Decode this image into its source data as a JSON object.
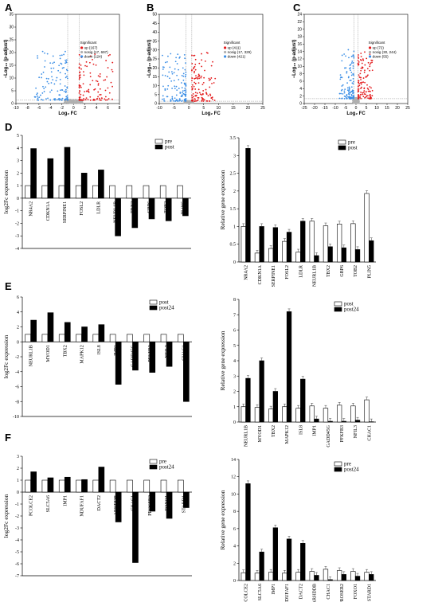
{
  "panels": {
    "A": "A",
    "B": "B",
    "C": "C",
    "D": "D",
    "E": "E",
    "F": "F"
  },
  "volcano": {
    "xlabel": "Log₂ FC",
    "ylabel": "−Log₁₀ (p-adjust)",
    "legend_title": "Significant",
    "colors": {
      "up": "#e31a1c",
      "nosig": "#b0b0b0",
      "down": "#3a8ee6"
    },
    "plots": [
      {
        "id": "A",
        "xlim": [
          -10,
          8
        ],
        "ylim": [
          0,
          35
        ],
        "xticks": [
          -10,
          -8,
          -6,
          -4,
          -2,
          0,
          2,
          4,
          6,
          8
        ],
        "yticks": [
          0,
          5,
          10,
          15,
          20,
          25,
          30,
          35
        ],
        "vlines": [
          -1,
          1
        ],
        "hline": 1.3,
        "legend": [
          "up (167)",
          "nosig (17, 697)",
          "down (124)"
        ]
      },
      {
        "id": "B",
        "xlim": [
          -10,
          25
        ],
        "ylim": [
          0,
          50
        ],
        "xticks": [
          -10,
          -5,
          0,
          5,
          10,
          15,
          20,
          25
        ],
        "yticks": [
          0,
          5,
          10,
          15,
          20,
          25,
          30,
          35,
          40,
          45,
          50
        ],
        "vlines": [
          -1,
          1
        ],
        "hline": 1.3,
        "legend": [
          "up (411)",
          "nosig (17, 329)",
          "down (421)"
        ]
      },
      {
        "id": "C",
        "xlim": [
          -25,
          25
        ],
        "ylim": [
          0,
          24
        ],
        "xticks": [
          -25,
          -20,
          -15,
          -10,
          -5,
          0,
          5,
          10,
          15,
          20,
          25
        ],
        "yticks": [
          0,
          2,
          4,
          6,
          8,
          10,
          12,
          14,
          16,
          18,
          20,
          22,
          24
        ],
        "vlines": [
          -1,
          1
        ],
        "hline": 1.3,
        "legend": [
          "up (72)",
          "nosig (30, 244)",
          "down (55)"
        ]
      }
    ]
  },
  "chart_data": [
    {
      "id": "D-left",
      "type": "bar",
      "ylabel": "log2Fc expression",
      "ylim": [
        -4,
        5
      ],
      "yticks": [
        -4,
        -3,
        -2,
        -1,
        0,
        1,
        2,
        3,
        4,
        5
      ],
      "categories": [
        "NR4A2",
        "CDKN1A",
        "SERPINE1",
        "FOSL2",
        "LDLR",
        "NEURL1B",
        "TBX2",
        "GBP6",
        "TOB2",
        "PLIN5"
      ],
      "series": [
        {
          "name": "pre",
          "values": [
            1,
            1,
            1,
            1,
            1,
            1,
            1,
            1,
            1,
            1
          ]
        },
        {
          "name": "post",
          "values": [
            3.95,
            3.15,
            4.05,
            2.0,
            2.25,
            -3.0,
            -2.35,
            -1.65,
            -1.8,
            -1.4
          ]
        }
      ]
    },
    {
      "id": "D-right",
      "type": "bar",
      "ylabel": "Relative gene expression",
      "ylim": [
        0,
        3.5
      ],
      "yticks": [
        0,
        0.5,
        1.0,
        1.5,
        2.0,
        2.5,
        3.0,
        3.5
      ],
      "categories": [
        "NR4A2",
        "CDKN1A",
        "SERPINE1",
        "FOSL2",
        "LDLR",
        "NEURL1B",
        "TBX2",
        "GBP6",
        "TOB2",
        "PLIN5"
      ],
      "series": [
        {
          "name": "pre",
          "values": [
            1.0,
            0.25,
            0.38,
            0.58,
            0.28,
            1.15,
            1.02,
            1.07,
            1.08,
            1.93
          ]
        },
        {
          "name": "post",
          "values": [
            3.2,
            1.0,
            0.97,
            0.84,
            1.15,
            0.18,
            0.43,
            0.4,
            0.35,
            0.6
          ]
        }
      ]
    },
    {
      "id": "E-left",
      "type": "bar",
      "ylabel": "log2Fc expression",
      "ylim": [
        -10,
        6
      ],
      "yticks": [
        -10,
        -8,
        -6,
        -4,
        -2,
        0,
        2,
        4,
        6
      ],
      "categories": [
        "NEURL1B",
        "MYOD1",
        "TBX2",
        "MAPK12",
        "ISL8",
        "IMP1",
        "GADD45G",
        "PFKFB3",
        "NFIL3",
        "CHAC1"
      ],
      "series": [
        {
          "name": "post",
          "values": [
            1,
            1,
            1,
            1,
            1,
            1,
            1,
            1,
            1,
            1
          ]
        },
        {
          "name": "post24",
          "values": [
            2.9,
            3.9,
            2.6,
            2.0,
            2.3,
            -5.7,
            -3.8,
            -4.1,
            -3.3,
            -8.0
          ]
        }
      ]
    },
    {
      "id": "E-right",
      "type": "bar",
      "ylabel": "Relative gene expression",
      "ylim": [
        0,
        8
      ],
      "yticks": [
        0,
        1,
        2,
        3,
        4,
        5,
        6,
        7,
        8
      ],
      "categories": [
        "NEURL1B",
        "MYOD1",
        "TBX2",
        "MAPK12",
        "ISL8",
        "IMP1",
        "GADD45G",
        "PFKFB3",
        "NFIL3",
        "CHAC1"
      ],
      "series": [
        {
          "name": "post",
          "values": [
            1.0,
            0.95,
            0.85,
            1.0,
            0.9,
            1.05,
            0.9,
            1.1,
            1.05,
            1.45
          ]
        },
        {
          "name": "post24",
          "values": [
            2.85,
            4.0,
            2.0,
            7.2,
            2.8,
            0.2,
            0.05,
            0.05,
            0.12,
            0.02
          ]
        }
      ]
    },
    {
      "id": "F-left",
      "type": "bar",
      "ylabel": "log2Fc expression",
      "ylim": [
        -7,
        3
      ],
      "yticks": [
        -7,
        -6,
        -5,
        -4,
        -3,
        -2,
        -1,
        0,
        1,
        2,
        3
      ],
      "categories": [
        "PCOLCE2",
        "SLC5A6",
        "IMP1",
        "NDUFAF1",
        "DACT2",
        "ARHDDB",
        "CHAC1",
        "PROSER2",
        "FOXO1",
        "STARD1"
      ],
      "series": [
        {
          "name": "pre",
          "values": [
            1,
            1,
            1,
            1,
            1,
            1,
            1,
            1,
            1,
            1
          ]
        },
        {
          "name": "post24",
          "values": [
            1.7,
            1.2,
            1.25,
            1.05,
            2.1,
            -2.5,
            -5.9,
            -1.6,
            -2.2,
            -1.3
          ]
        }
      ]
    },
    {
      "id": "F-right",
      "type": "bar",
      "ylabel": "Relative gene expression",
      "ylim": [
        0,
        14
      ],
      "yticks": [
        0,
        2,
        4,
        6,
        8,
        10,
        12,
        14
      ],
      "categories": [
        "PCOLCE2",
        "SLC5A6",
        "IMP1",
        "NDUFAF1",
        "DACT2",
        "ARHDDB",
        "CHAC1",
        "PROSER2",
        "FOXO1",
        "STARD1"
      ],
      "series": [
        {
          "name": "pre",
          "values": [
            0.9,
            0.85,
            0.95,
            0.85,
            0.95,
            1.05,
            1.3,
            1.15,
            1.05,
            0.95
          ]
        },
        {
          "name": "post24",
          "values": [
            11.2,
            3.3,
            6.1,
            4.8,
            4.3,
            0.6,
            0.1,
            0.7,
            0.5,
            0.7
          ]
        }
      ]
    }
  ]
}
